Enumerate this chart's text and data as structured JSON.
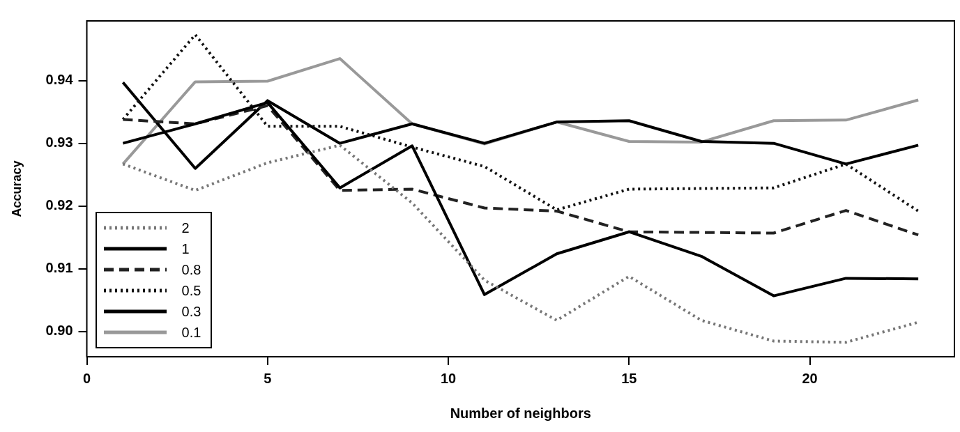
{
  "chart_data": {
    "type": "line",
    "xlabel": "Number of neighbors",
    "ylabel": "Accuracy",
    "x": [
      1,
      3,
      5,
      7,
      9,
      11,
      13,
      15,
      17,
      19,
      21,
      23
    ],
    "xlim": [
      0,
      24
    ],
    "xticks": [
      0,
      5,
      10,
      15,
      20
    ],
    "ylim": [
      0.896,
      0.9495
    ],
    "yticks": [
      {
        "value": 0.9,
        "label": "0.90"
      },
      0.91,
      0.92,
      0.93,
      0.94
    ],
    "grid": false,
    "legend": "bottom left",
    "marker": "none",
    "series": [
      {
        "name": "2",
        "color": "#777777",
        "line_style": "dotted",
        "values": [
          0.9267,
          0.9225,
          0.9269,
          0.9297,
          0.9205,
          0.9082,
          0.9018,
          0.9088,
          0.9018,
          0.8985,
          0.8983,
          0.9015
        ]
      },
      {
        "name": "1",
        "color": "#000000",
        "line_style": "solid",
        "values": [
          0.93,
          0.9331,
          0.9365,
          0.9229,
          0.9296,
          0.9059,
          0.9124,
          0.9159,
          0.912,
          0.9057,
          0.9085,
          0.9084
        ]
      },
      {
        "name": "0.8",
        "color": "#222222",
        "line_style": "dashed",
        "values": [
          0.9338,
          0.9331,
          0.936,
          0.9225,
          0.9227,
          0.9197,
          0.9192,
          0.9159,
          0.9158,
          0.9157,
          0.9193,
          0.9154
        ]
      },
      {
        "name": "0.5",
        "color": "#111111",
        "line_style": "dotted",
        "values": [
          0.9338,
          0.9473,
          0.9327,
          0.9327,
          0.9294,
          0.9263,
          0.9194,
          0.9227,
          0.9228,
          0.9229,
          0.9267,
          0.9192
        ]
      },
      {
        "name": "0.3",
        "color": "#000000",
        "line_style": "solid",
        "values": [
          0.9397,
          0.926,
          0.9368,
          0.93,
          0.9331,
          0.93,
          0.9334,
          0.9336,
          0.9303,
          0.93,
          0.9267,
          0.9297
        ]
      },
      {
        "name": "0.1",
        "color": "#999999",
        "line_style": "solid",
        "values": [
          0.9267,
          0.9398,
          0.9399,
          0.9435,
          0.9331,
          0.9299,
          0.9334,
          0.9303,
          0.9302,
          0.9336,
          0.9337,
          0.9369
        ]
      }
    ]
  }
}
